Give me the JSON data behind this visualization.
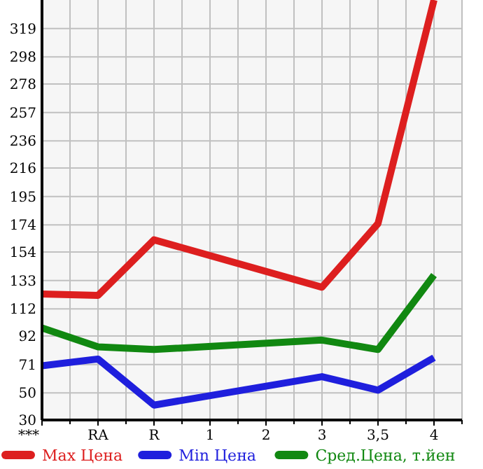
{
  "chart_data": {
    "type": "line",
    "categories": [
      "***",
      "RA",
      "R",
      "1",
      "2",
      "3",
      "3,5",
      "4"
    ],
    "series": [
      {
        "name": "Max Цена",
        "color": "#dd1f1f",
        "values": [
          123,
          122,
          163,
          null,
          null,
          128,
          175,
          340
        ]
      },
      {
        "name": "Min Цена",
        "color": "#1f1fdd",
        "values": [
          70,
          75,
          41,
          null,
          null,
          62,
          52,
          76
        ]
      },
      {
        "name": "Сред.Цена, т.йен",
        "color": "#118811",
        "values": [
          98,
          84,
          82,
          null,
          null,
          89,
          82,
          137
        ]
      }
    ],
    "ylim": [
      30,
      340
    ],
    "yticks": [
      30,
      50,
      71,
      92,
      112,
      133,
      154,
      174,
      195,
      216,
      236,
      257,
      278,
      298,
      319
    ],
    "grid": true,
    "legend": "bottom"
  }
}
